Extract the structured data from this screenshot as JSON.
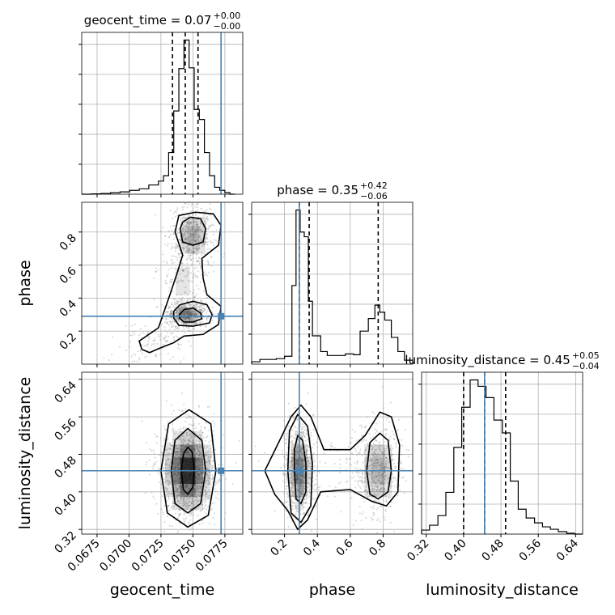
{
  "colors": {
    "truth": "#4682b4",
    "hist": "#000000",
    "grid": "#b0b0b0",
    "scatter": "#8a8a8a",
    "density": "#000000"
  },
  "chart_data": [
    {
      "type": "histogram",
      "parameter": "geocent_time",
      "title": {
        "prefix": "geocent_time = 0.07",
        "sup": "+0.00",
        "sub": "−0.00"
      },
      "xlim": [
        0.0663,
        0.0789
      ],
      "xticks": [
        0.0675,
        0.07,
        0.0725,
        0.075,
        0.0775
      ],
      "xtick_labels": [
        "0.0675",
        "0.0700",
        "0.0725",
        "0.0750",
        "0.0775"
      ],
      "xlabel": "geocent_time",
      "bins": [
        0.0663,
        0.06705,
        0.0678,
        0.06855,
        0.0693,
        0.07005,
        0.0708,
        0.07155,
        0.0723,
        0.0727,
        0.0731,
        0.0735,
        0.0739,
        0.0743,
        0.0747,
        0.0751,
        0.0755,
        0.0759,
        0.0763,
        0.0767,
        0.0771,
        0.0775,
        0.0779,
        0.0783
      ],
      "counts": [
        0.0,
        0.2,
        0.5,
        1.0,
        1.5,
        2.5,
        3.5,
        6.0,
        8.5,
        12.0,
        27.0,
        54.0,
        81.5,
        100.0,
        82.0,
        55.0,
        48.5,
        27.0,
        12.0,
        4.5,
        2.5,
        1.0,
        0.0
      ],
      "quantiles": [
        0.0734,
        0.0744,
        0.0754
      ],
      "truth": 0.0772
    },
    {
      "type": "histogram",
      "parameter": "phase",
      "title": {
        "prefix": "phase = 0.35",
        "sup": "+0.42",
        "sub": "−0.06"
      },
      "xlim": [
        0.0,
        0.98
      ],
      "xticks": [
        0.2,
        0.4,
        0.6,
        0.8
      ],
      "xtick_labels": [
        "0.2",
        "0.4",
        "0.6",
        "0.8"
      ],
      "xlabel": "phase",
      "bins": [
        0.0,
        0.05,
        0.1,
        0.15,
        0.2,
        0.245,
        0.27,
        0.295,
        0.32,
        0.345,
        0.37,
        0.42,
        0.46,
        0.52,
        0.57,
        0.62,
        0.66,
        0.71,
        0.75,
        0.78,
        0.81,
        0.85,
        0.89,
        0.93,
        0.98
      ],
      "counts": [
        1.5,
        3.0,
        3.0,
        3.5,
        5.0,
        50.0,
        98.0,
        84.0,
        81.0,
        40.0,
        18.0,
        8.0,
        5.5,
        5.5,
        6.5,
        6.0,
        21.0,
        29.0,
        37.5,
        33.0,
        28.0,
        17.0,
        8.0,
        2.5
      ],
      "quantiles": [
        0.29,
        0.35,
        0.77
      ],
      "truth": 0.29
    },
    {
      "type": "histogram",
      "parameter": "luminosity_distance",
      "title": {
        "prefix": "luminosity_distance = 0.45",
        "sup": "+0.05",
        "sub": "−0.04"
      },
      "xlim": [
        0.31,
        0.655
      ],
      "xticks": [
        0.32,
        0.4,
        0.48,
        0.56,
        0.64
      ],
      "xtick_labels": [
        "0.32",
        "0.40",
        "0.48",
        "0.56",
        "0.64"
      ],
      "xlabel": "luminosity_distance",
      "bins": [
        0.31,
        0.327,
        0.345,
        0.362,
        0.379,
        0.396,
        0.414,
        0.431,
        0.448,
        0.465,
        0.483,
        0.5,
        0.517,
        0.534,
        0.552,
        0.569,
        0.586,
        0.603,
        0.621,
        0.638,
        0.655
      ],
      "counts": [
        2.5,
        5.5,
        11.5,
        26.0,
        54.0,
        79.0,
        96.0,
        92.0,
        85.0,
        71.0,
        63.0,
        33.0,
        15.5,
        10.0,
        7.0,
        4.5,
        3.0,
        1.5,
        0.5,
        0.0
      ],
      "quantiles": [
        0.4,
        0.445,
        0.49
      ],
      "truth": 0.445
    },
    {
      "type": "scatter-density",
      "x": "geocent_time",
      "y": "phase",
      "ylim": [
        0.0,
        0.98
      ],
      "yticks": [
        0.2,
        0.4,
        0.6,
        0.8
      ],
      "ytick_labels": [
        "0.2",
        "0.4",
        "0.6",
        "0.8"
      ],
      "ylabel": "phase",
      "truth": [
        0.0772,
        0.29
      ],
      "modes": [
        {
          "x": 0.0745,
          "y": 0.3,
          "sx": 0.0006,
          "sy": 0.03,
          "w": 0.45
        },
        {
          "x": 0.075,
          "y": 0.78,
          "sx": 0.0007,
          "sy": 0.08,
          "w": 0.35
        },
        {
          "x": 0.0742,
          "y": 0.5,
          "sx": 0.0008,
          "sy": 0.12,
          "w": 0.13
        },
        {
          "x": 0.0718,
          "y": 0.12,
          "sx": 0.0012,
          "sy": 0.06,
          "w": 0.07
        }
      ],
      "contours": [
        {
          "level": 0.39,
          "points": [
            [
              0.07395,
              0.28
            ],
            [
              0.0743,
              0.255
            ],
            [
              0.075,
              0.255
            ],
            [
              0.0757,
              0.275
            ],
            [
              0.0756,
              0.31
            ],
            [
              0.075,
              0.34
            ],
            [
              0.0743,
              0.33
            ],
            [
              0.07395,
              0.3
            ]
          ]
        },
        {
          "level": 0.86,
          "points": [
            [
              0.0735,
              0.28
            ],
            [
              0.0739,
              0.235
            ],
            [
              0.075,
              0.23
            ],
            [
              0.0763,
              0.25
            ],
            [
              0.0765,
              0.3
            ],
            [
              0.0761,
              0.36
            ],
            [
              0.075,
              0.38
            ],
            [
              0.074,
              0.36
            ],
            [
              0.0735,
              0.32
            ]
          ]
        },
        {
          "level": 0.86,
          "points": [
            [
              0.074,
              0.82
            ],
            [
              0.0742,
              0.74
            ],
            [
              0.075,
              0.72
            ],
            [
              0.0758,
              0.74
            ],
            [
              0.076,
              0.82
            ],
            [
              0.0756,
              0.88
            ],
            [
              0.0748,
              0.89
            ],
            [
              0.0742,
              0.86
            ]
          ]
        },
        {
          "level": 0.99,
          "points": [
            [
              0.0716,
              0.07
            ],
            [
              0.0725,
              0.1
            ],
            [
              0.0735,
              0.13
            ],
            [
              0.0743,
              0.17
            ],
            [
              0.0758,
              0.18
            ],
            [
              0.077,
              0.24
            ],
            [
              0.0772,
              0.35
            ],
            [
              0.0761,
              0.42
            ],
            [
              0.0758,
              0.52
            ],
            [
              0.0757,
              0.64
            ],
            [
              0.077,
              0.72
            ],
            [
              0.0772,
              0.84
            ],
            [
              0.0766,
              0.91
            ],
            [
              0.0752,
              0.92
            ],
            [
              0.0739,
              0.9
            ],
            [
              0.0736,
              0.8
            ],
            [
              0.0742,
              0.66
            ],
            [
              0.0738,
              0.56
            ],
            [
              0.0732,
              0.42
            ],
            [
              0.0723,
              0.22
            ],
            [
              0.0708,
              0.14
            ],
            [
              0.071,
              0.09
            ]
          ]
        }
      ]
    },
    {
      "type": "scatter-density",
      "x": "geocent_time",
      "y": "luminosity_distance",
      "ylim": [
        0.31,
        0.655
      ],
      "yticks": [
        0.32,
        0.4,
        0.48,
        0.56,
        0.64
      ],
      "ytick_labels": [
        "0.32",
        "0.40",
        "0.48",
        "0.56",
        "0.64"
      ],
      "ylabel": "luminosity_distance",
      "truth": [
        0.0772,
        0.445
      ],
      "modes": [
        {
          "x": 0.0746,
          "y": 0.445,
          "sx": 0.00085,
          "sy": 0.04,
          "w": 1.0
        }
      ],
      "contours": [
        {
          "level": 0.39,
          "points": [
            [
              0.0741,
              0.445
            ],
            [
              0.07425,
              0.405
            ],
            [
              0.0746,
              0.395
            ],
            [
              0.075,
              0.41
            ],
            [
              0.0751,
              0.445
            ],
            [
              0.07495,
              0.485
            ],
            [
              0.0746,
              0.495
            ],
            [
              0.07425,
              0.48
            ]
          ]
        },
        {
          "level": 0.86,
          "points": [
            [
              0.0733,
              0.445
            ],
            [
              0.0736,
              0.375
            ],
            [
              0.0746,
              0.355
            ],
            [
              0.0756,
              0.375
            ],
            [
              0.076,
              0.445
            ],
            [
              0.0757,
              0.51
            ],
            [
              0.0746,
              0.535
            ],
            [
              0.0736,
              0.51
            ]
          ]
        },
        {
          "level": 0.99,
          "points": [
            [
              0.0725,
              0.445
            ],
            [
              0.073,
              0.355
            ],
            [
              0.0746,
              0.325
            ],
            [
              0.0762,
              0.35
            ],
            [
              0.0768,
              0.445
            ],
            [
              0.0764,
              0.545
            ],
            [
              0.0747,
              0.575
            ],
            [
              0.0731,
              0.545
            ]
          ]
        }
      ]
    },
    {
      "type": "scatter-density",
      "x": "phase",
      "y": "luminosity_distance",
      "truth": [
        0.29,
        0.445
      ],
      "modes": [
        {
          "x": 0.29,
          "y": 0.445,
          "sx": 0.035,
          "sy": 0.04,
          "w": 0.55
        },
        {
          "x": 0.77,
          "y": 0.445,
          "sx": 0.06,
          "sy": 0.04,
          "w": 0.35
        },
        {
          "x": 0.52,
          "y": 0.445,
          "sx": 0.15,
          "sy": 0.04,
          "w": 0.1
        }
      ],
      "contours": [
        {
          "level": 0.39,
          "points": [
            [
              0.26,
              0.445
            ],
            [
              0.27,
              0.385
            ],
            [
              0.3,
              0.375
            ],
            [
              0.33,
              0.4
            ],
            [
              0.33,
              0.46
            ],
            [
              0.31,
              0.51
            ],
            [
              0.28,
              0.52
            ],
            [
              0.26,
              0.49
            ]
          ]
        },
        {
          "level": 0.86,
          "points": [
            [
              0.22,
              0.445
            ],
            [
              0.24,
              0.355
            ],
            [
              0.3,
              0.335
            ],
            [
              0.36,
              0.37
            ],
            [
              0.37,
              0.46
            ],
            [
              0.34,
              0.54
            ],
            [
              0.28,
              0.565
            ],
            [
              0.23,
              0.53
            ]
          ]
        },
        {
          "level": 0.99,
          "points": [
            [
              0.08,
              0.445
            ],
            [
              0.14,
              0.395
            ],
            [
              0.22,
              0.36
            ],
            [
              0.28,
              0.32
            ],
            [
              0.34,
              0.34
            ],
            [
              0.42,
              0.4
            ],
            [
              0.6,
              0.405
            ],
            [
              0.73,
              0.38
            ],
            [
              0.82,
              0.37
            ],
            [
              0.89,
              0.4
            ],
            [
              0.9,
              0.5
            ],
            [
              0.85,
              0.56
            ],
            [
              0.78,
              0.57
            ],
            [
              0.69,
              0.52
            ],
            [
              0.6,
              0.49
            ],
            [
              0.44,
              0.49
            ],
            [
              0.36,
              0.56
            ],
            [
              0.3,
              0.585
            ],
            [
              0.24,
              0.56
            ],
            [
              0.15,
              0.495
            ]
          ]
        },
        {
          "level": 0.86,
          "points": [
            [
              0.7,
              0.445
            ],
            [
              0.72,
              0.395
            ],
            [
              0.77,
              0.385
            ],
            [
              0.83,
              0.4
            ],
            [
              0.85,
              0.445
            ],
            [
              0.83,
              0.51
            ],
            [
              0.78,
              0.525
            ],
            [
              0.72,
              0.505
            ]
          ]
        }
      ]
    }
  ]
}
